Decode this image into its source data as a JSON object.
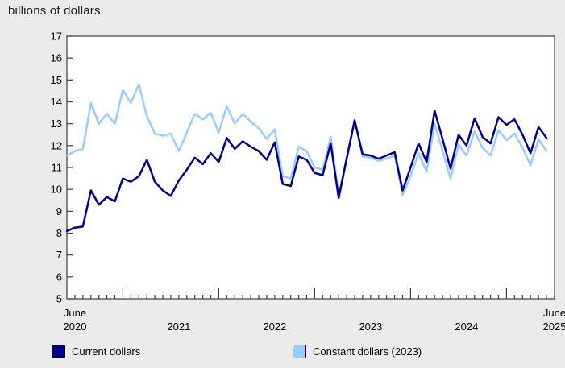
{
  "title": "billions of dollars",
  "legend": {
    "current_label": "Current dollars",
    "constant_label": "Constant dollars (2023)"
  },
  "colors": {
    "current": "#00008b",
    "constant": "#99ccff",
    "background": "#ebebeb",
    "plot_background": "#ffffff",
    "axis": "#3c3c3c",
    "text": "#000000"
  },
  "chart_data": {
    "type": "line",
    "title": "billions of dollars",
    "xlabel": "",
    "ylabel": "billions of dollars",
    "ylim": [
      5,
      17
    ],
    "y_ticks": [
      5,
      6,
      7,
      8,
      9,
      10,
      11,
      12,
      13,
      14,
      15,
      16,
      17
    ],
    "grid": false,
    "legend_position": "bottom",
    "categories": [
      "2020-06",
      "2020-07",
      "2020-08",
      "2020-09",
      "2020-10",
      "2020-11",
      "2020-12",
      "2021-01",
      "2021-02",
      "2021-03",
      "2021-04",
      "2021-05",
      "2021-06",
      "2021-07",
      "2021-08",
      "2021-09",
      "2021-10",
      "2021-11",
      "2021-12",
      "2022-01",
      "2022-02",
      "2022-03",
      "2022-04",
      "2022-05",
      "2022-06",
      "2022-07",
      "2022-08",
      "2022-09",
      "2022-10",
      "2022-11",
      "2022-12",
      "2023-01",
      "2023-02",
      "2023-03",
      "2023-04",
      "2023-05",
      "2023-06",
      "2023-07",
      "2023-08",
      "2023-09",
      "2023-10",
      "2023-11",
      "2023-12",
      "2024-01",
      "2024-02",
      "2024-03",
      "2024-04",
      "2024-05",
      "2024-06",
      "2024-07",
      "2024-08",
      "2024-09",
      "2024-10",
      "2024-11",
      "2024-12",
      "2025-01",
      "2025-02",
      "2025-03",
      "2025-04",
      "2025-05",
      "2025-06"
    ],
    "series": [
      {
        "name": "Current dollars",
        "color": "#00008b",
        "values": [
          8.1,
          8.25,
          8.3,
          9.95,
          9.3,
          9.65,
          9.45,
          10.5,
          10.35,
          10.6,
          11.35,
          10.35,
          9.95,
          9.7,
          10.4,
          10.9,
          11.45,
          11.15,
          11.65,
          11.25,
          12.35,
          11.85,
          12.2,
          11.95,
          11.75,
          11.35,
          12.15,
          10.25,
          10.15,
          11.5,
          11.35,
          10.75,
          10.65,
          12.1,
          9.6,
          11.4,
          13.15,
          11.6,
          11.55,
          11.4,
          11.55,
          11.7,
          9.95,
          11.0,
          12.1,
          11.25,
          13.6,
          12.3,
          10.95,
          12.5,
          12.0,
          13.25,
          12.4,
          12.1,
          13.3,
          12.95,
          13.2,
          12.5,
          11.65,
          12.85,
          12.35
        ]
      },
      {
        "name": "Constant dollars (2023)",
        "color": "#99ccff",
        "values": [
          11.55,
          11.75,
          11.85,
          13.95,
          13.0,
          13.45,
          13.0,
          14.55,
          13.95,
          14.8,
          13.35,
          12.55,
          12.45,
          12.55,
          11.75,
          12.6,
          13.45,
          13.2,
          13.5,
          12.6,
          13.8,
          13.0,
          13.45,
          13.1,
          12.8,
          12.3,
          12.75,
          10.6,
          10.5,
          11.95,
          11.75,
          11.0,
          10.9,
          12.4,
          9.75,
          11.45,
          13.2,
          11.5,
          11.45,
          11.3,
          11.4,
          11.55,
          9.75,
          10.6,
          11.65,
          10.8,
          13.0,
          11.75,
          10.5,
          12.05,
          11.55,
          12.65,
          11.9,
          11.55,
          12.7,
          12.25,
          12.55,
          11.9,
          11.1,
          12.3,
          11.75
        ]
      }
    ],
    "x_axis_labels": [
      {
        "index": 0,
        "line1": "June",
        "line2": "2020"
      },
      {
        "index": 13,
        "line1": "",
        "line2": "2021"
      },
      {
        "index": 25,
        "line1": "",
        "line2": "2022"
      },
      {
        "index": 37,
        "line1": "",
        "line2": "2023"
      },
      {
        "index": 49,
        "line1": "",
        "line2": "2024"
      },
      {
        "index": 60,
        "line1": "June",
        "line2": "2025"
      }
    ]
  }
}
